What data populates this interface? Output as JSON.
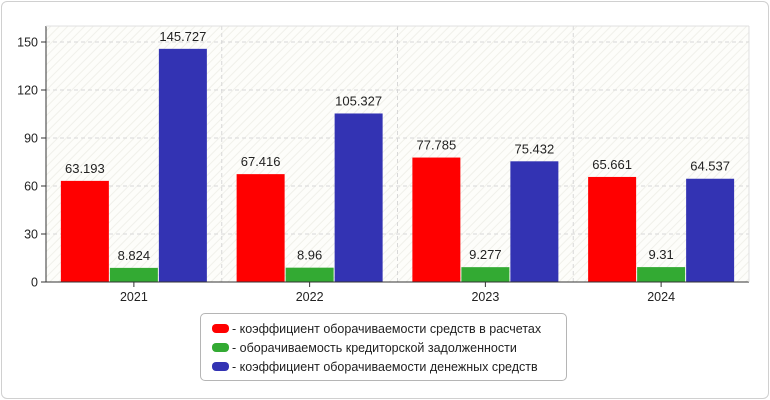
{
  "chart_data": {
    "type": "bar",
    "categories": [
      "2021",
      "2022",
      "2023",
      "2024"
    ],
    "series": [
      {
        "name": "- коэффициент оборачиваемости средств в расчетах",
        "color": "#ff0000",
        "values": [
          63.193,
          67.416,
          77.785,
          65.661
        ],
        "labels": [
          "63.193",
          "67.416",
          "77.785",
          "65.661"
        ]
      },
      {
        "name": "- оборачиваемость кредиторской задолженности",
        "color": "#33aa33",
        "values": [
          8.824,
          8.96,
          9.277,
          9.31
        ],
        "labels": [
          "8.824",
          "8.96",
          "9.277",
          "9.31"
        ]
      },
      {
        "name": "- коэффициент оборачиваемости денежных средств",
        "color": "#3333b3",
        "values": [
          145.727,
          105.327,
          75.432,
          64.537
        ],
        "labels": [
          "145.727",
          "105.327",
          "75.432",
          "64.537"
        ]
      }
    ],
    "y_ticks": [
      "0",
      "30",
      "60",
      "90",
      "120",
      "150"
    ],
    "ylim": [
      0,
      160
    ],
    "grid": true,
    "legend_position": "bottom"
  }
}
